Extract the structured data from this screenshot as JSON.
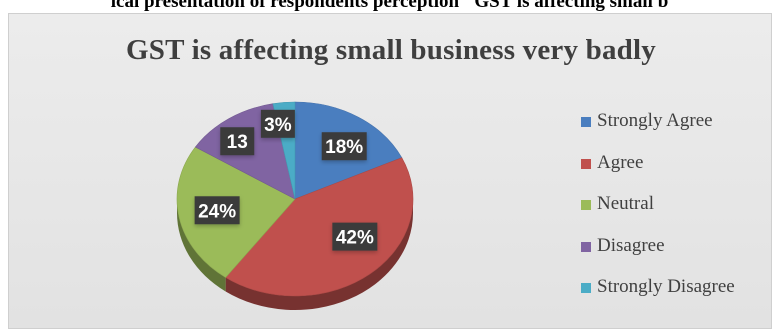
{
  "page_heading": "ical presentation of respondents perception \"GST is affecting small b",
  "chart_data": {
    "type": "pie",
    "title": "GST is affecting small business very badly",
    "categories": [
      "Strongly Agree",
      "Agree",
      "Neutral",
      "Disagree",
      "Strongly Disagree"
    ],
    "values": [
      18,
      42,
      24,
      13,
      3
    ],
    "data_labels": [
      "18%",
      "42%",
      "24%",
      "13",
      "3%"
    ],
    "colors": [
      "#4a7ebf",
      "#c0504d",
      "#9bbb59",
      "#8064a2",
      "#4bacc6"
    ],
    "style": "3d",
    "legend_position": "right"
  }
}
